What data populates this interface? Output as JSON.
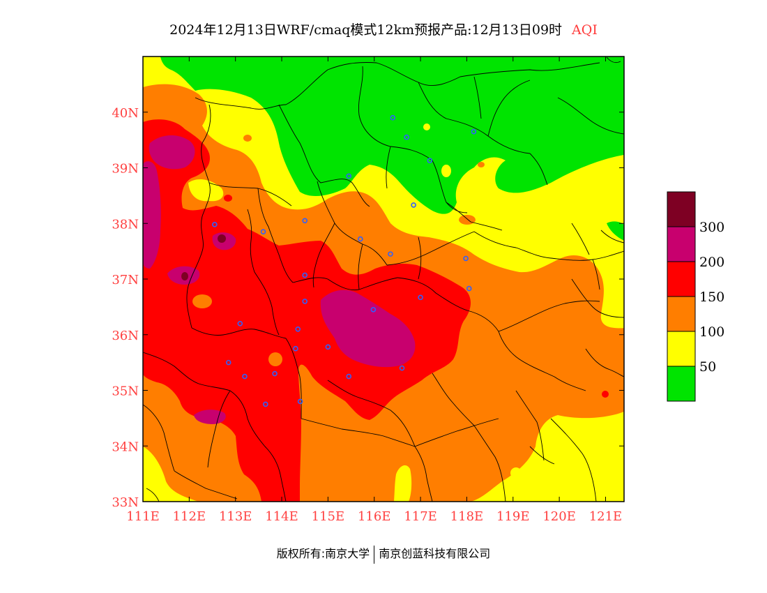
{
  "header": {
    "title": "2024年12月13日WRF/cmaq模式12km预报产品:12月13日09时",
    "product": "AQI"
  },
  "axes": {
    "lon_labels": [
      "111E",
      "112E",
      "113E",
      "114E",
      "115E",
      "116E",
      "117E",
      "118E",
      "119E",
      "120E",
      "121E"
    ],
    "lon_values": [
      111,
      112,
      113,
      114,
      115,
      116,
      117,
      118,
      119,
      120,
      121
    ],
    "lat_labels": [
      "33N",
      "34N",
      "35N",
      "36N",
      "37N",
      "38N",
      "39N",
      "40N"
    ],
    "lat_values": [
      33,
      34,
      35,
      36,
      37,
      38,
      39,
      40
    ],
    "lon_range": [
      111,
      121.4
    ],
    "lat_range": [
      33,
      41
    ]
  },
  "legend": {
    "labels": [
      "50",
      "100",
      "150",
      "200",
      "300"
    ],
    "bins": [
      {
        "color": "#00e400"
      },
      {
        "color": "#ffff00"
      },
      {
        "color": "#ff7e00"
      },
      {
        "color": "#ff0000"
      },
      {
        "color": "#c8006e"
      },
      {
        "color": "#7e0023"
      }
    ]
  },
  "colors": {
    "good": "#00e400",
    "moderate": "#ffff00",
    "sensitive": "#ff7e00",
    "unhealthy": "#ff0000",
    "very_unhealthy": "#c8006e",
    "hazardous": "#7e0023",
    "axis_label": "#ff4040",
    "station_marker": "#3060ff"
  },
  "stations": [
    {
      "lon": 116.4,
      "lat": 39.9
    },
    {
      "lon": 116.7,
      "lat": 39.55
    },
    {
      "lon": 118.15,
      "lat": 39.65
    },
    {
      "lon": 117.2,
      "lat": 39.13
    },
    {
      "lon": 115.45,
      "lat": 38.85
    },
    {
      "lon": 116.85,
      "lat": 38.33
    },
    {
      "lon": 114.5,
      "lat": 38.05
    },
    {
      "lon": 112.55,
      "lat": 37.98
    },
    {
      "lon": 113.6,
      "lat": 37.85
    },
    {
      "lon": 115.7,
      "lat": 37.72
    },
    {
      "lon": 116.35,
      "lat": 37.45
    },
    {
      "lon": 117.98,
      "lat": 37.37
    },
    {
      "lon": 114.5,
      "lat": 37.07
    },
    {
      "lon": 118.05,
      "lat": 36.83
    },
    {
      "lon": 117.0,
      "lat": 36.67
    },
    {
      "lon": 114.5,
      "lat": 36.6
    },
    {
      "lon": 115.98,
      "lat": 36.45
    },
    {
      "lon": 113.1,
      "lat": 36.2
    },
    {
      "lon": 114.35,
      "lat": 36.1
    },
    {
      "lon": 115.0,
      "lat": 35.78
    },
    {
      "lon": 114.3,
      "lat": 35.75
    },
    {
      "lon": 112.85,
      "lat": 35.5
    },
    {
      "lon": 113.2,
      "lat": 35.25
    },
    {
      "lon": 113.85,
      "lat": 35.3
    },
    {
      "lon": 115.45,
      "lat": 35.25
    },
    {
      "lon": 116.6,
      "lat": 35.4
    },
    {
      "lon": 114.4,
      "lat": 34.8
    },
    {
      "lon": 113.65,
      "lat": 34.75
    }
  ],
  "footer": {
    "copyright": "版权所有:南京大学",
    "company": "南京创蓝科技有限公司"
  }
}
